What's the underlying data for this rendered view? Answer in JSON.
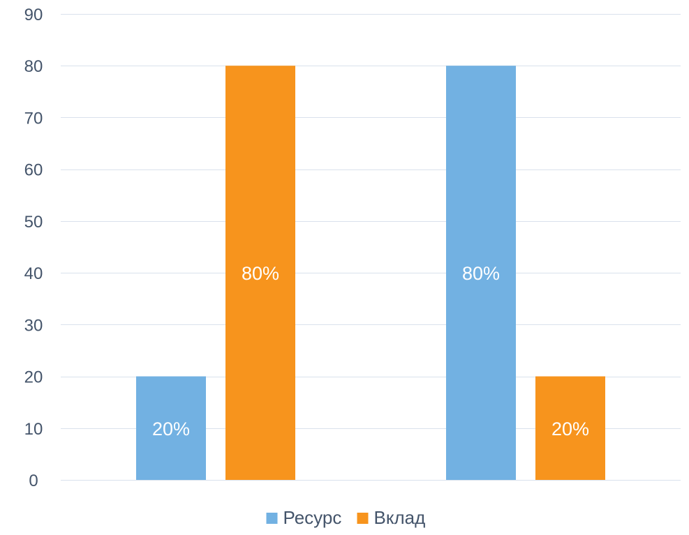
{
  "chart_data": {
    "type": "bar",
    "categories": [
      "",
      ""
    ],
    "series": [
      {
        "name": "Ресурс",
        "values": [
          20,
          80
        ],
        "labels": [
          "20%",
          "80%"
        ],
        "color": "#72b1e2"
      },
      {
        "name": "Вклад",
        "values": [
          80,
          20
        ],
        "labels": [
          "80%",
          "20%"
        ],
        "color": "#f7941d"
      }
    ],
    "title": "",
    "xlabel": "",
    "ylabel": "",
    "ylim": [
      0,
      90
    ],
    "yticks": [
      0,
      10,
      20,
      30,
      40,
      50,
      60,
      70,
      80,
      90
    ],
    "grid": true,
    "legend": "bottom",
    "colors": {
      "axis_text": "#44546a",
      "gridline": "#d9e1ec",
      "data_label": "#ffffff"
    }
  }
}
